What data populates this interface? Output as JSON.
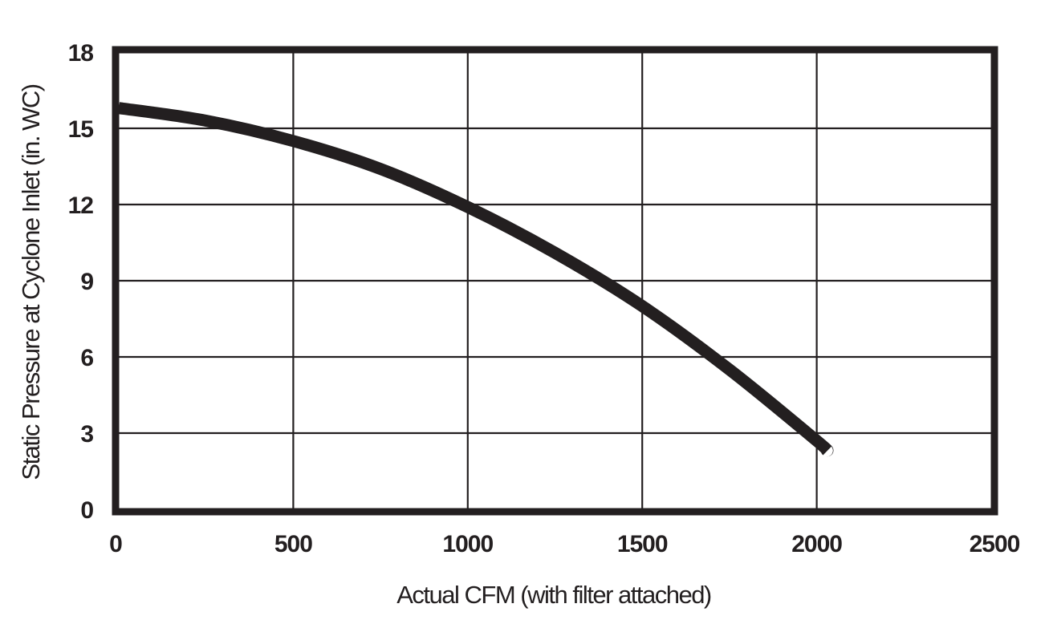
{
  "chart_data": {
    "type": "line",
    "title": "",
    "xlabel": "Actual CFM (with filter attached)",
    "ylabel": "Static Pressure at Cyclone Inlet (in. WC)",
    "xlim": [
      0,
      2500
    ],
    "ylim": [
      0,
      18
    ],
    "x_ticks": [
      0,
      500,
      1000,
      1500,
      2000,
      2500
    ],
    "y_ticks": [
      0,
      3,
      6,
      9,
      12,
      15,
      18
    ],
    "x_tick_labels": [
      "0",
      "500",
      "1000",
      "1500",
      "2000",
      "2500"
    ],
    "y_tick_labels": [
      "0",
      "3",
      "6",
      "9",
      "12",
      "15",
      "18"
    ],
    "grid": true,
    "legend": null,
    "series": [
      {
        "name": "Static Pressure",
        "color": "#231f20",
        "x": [
          0,
          250,
          500,
          750,
          1000,
          1250,
          1500,
          1750,
          2000,
          2030
        ],
        "y": [
          15.8,
          15.3,
          14.5,
          13.4,
          11.9,
          10.1,
          8.0,
          5.5,
          2.7,
          2.3
        ]
      }
    ]
  },
  "colors": {
    "ink": "#231f20",
    "background": "#ffffff"
  }
}
